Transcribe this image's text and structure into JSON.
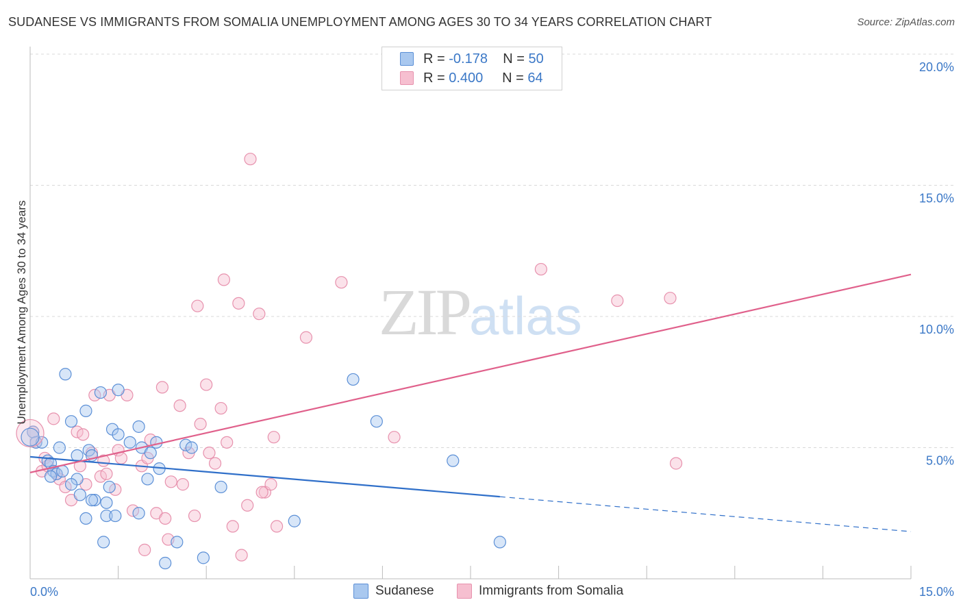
{
  "title": "SUDANESE VS IMMIGRANTS FROM SOMALIA UNEMPLOYMENT AMONG AGES 30 TO 34 YEARS CORRELATION CHART",
  "source": "Source: ZipAtlas.com",
  "watermark": {
    "zip": "ZIP",
    "atlas": "atlas"
  },
  "legend": {
    "rows": [
      {
        "r_label": "R =",
        "r_value": "-0.178",
        "n_label": "N =",
        "n_value": "50"
      },
      {
        "r_label": "R =",
        "r_value": "0.400",
        "n_label": "N =",
        "n_value": "64"
      }
    ]
  },
  "bottom_legend": {
    "series1": "Sudanese",
    "series2": "Immigrants from Somalia"
  },
  "colors": {
    "sudanese_fill": "#a9c8ef",
    "sudanese_stroke": "#5b8fd6",
    "sudanese_line": "#2f6fc9",
    "somalia_fill": "#f6bfd0",
    "somalia_stroke": "#e791ad",
    "somalia_line": "#e0608b",
    "tick": "#3b78c7",
    "grid": "#d8d8d8"
  },
  "chart_data": {
    "type": "scatter",
    "title": "SUDANESE VS IMMIGRANTS FROM SOMALIA UNEMPLOYMENT AMONG AGES 30 TO 34 YEARS CORRELATION CHART",
    "xlabel": "",
    "ylabel": "Unemployment Among Ages 30 to 34 years",
    "xlim": [
      0,
      15
    ],
    "ylim": [
      0,
      20
    ],
    "x_tick_labels": [
      "0.0%",
      "15.0%"
    ],
    "y_ticks": [
      5,
      10,
      15,
      20
    ],
    "y_tick_labels": [
      "5.0%",
      "10.0%",
      "15.0%",
      "20.0%"
    ],
    "grid": true,
    "legend_position": "top-center",
    "series": [
      {
        "name": "Sudanese",
        "R": -0.178,
        "N": 50,
        "trend": {
          "x0": 0,
          "y0": 4.65,
          "x1": 8.0,
          "y1": 3.13,
          "dashed_to_x": 15,
          "dashed_to_y": 1.8
        },
        "points": [
          [
            0.05,
            5.6
          ],
          [
            0.1,
            5.2
          ],
          [
            0.2,
            5.2
          ],
          [
            0.3,
            4.5
          ],
          [
            0.35,
            4.4
          ],
          [
            0.4,
            4.1
          ],
          [
            0.45,
            4.0
          ],
          [
            0.5,
            5.0
          ],
          [
            0.6,
            7.8
          ],
          [
            0.7,
            6.0
          ],
          [
            0.8,
            4.7
          ],
          [
            0.8,
            3.8
          ],
          [
            0.85,
            3.2
          ],
          [
            0.95,
            2.3
          ],
          [
            0.95,
            6.4
          ],
          [
            1.0,
            4.9
          ],
          [
            1.05,
            4.7
          ],
          [
            1.1,
            3.0
          ],
          [
            1.2,
            7.1
          ],
          [
            1.25,
            1.4
          ],
          [
            1.3,
            2.9
          ],
          [
            1.3,
            2.4
          ],
          [
            1.35,
            3.5
          ],
          [
            1.4,
            5.7
          ],
          [
            1.45,
            2.4
          ],
          [
            1.5,
            5.5
          ],
          [
            1.5,
            7.2
          ],
          [
            1.7,
            5.2
          ],
          [
            1.85,
            2.5
          ],
          [
            1.85,
            5.8
          ],
          [
            1.9,
            5.0
          ],
          [
            2.0,
            3.8
          ],
          [
            2.05,
            4.8
          ],
          [
            2.15,
            5.2
          ],
          [
            2.2,
            4.2
          ],
          [
            2.3,
            0.6
          ],
          [
            2.5,
            1.4
          ],
          [
            2.65,
            5.1
          ],
          [
            2.75,
            5.0
          ],
          [
            2.95,
            0.8
          ],
          [
            3.25,
            3.5
          ],
          [
            4.5,
            2.2
          ],
          [
            5.5,
            7.6
          ],
          [
            5.9,
            6.0
          ],
          [
            7.2,
            4.5
          ],
          [
            8.0,
            1.4
          ],
          [
            0.55,
            4.1
          ],
          [
            0.35,
            3.9
          ],
          [
            0.7,
            3.6
          ],
          [
            1.05,
            3.0
          ]
        ]
      },
      {
        "name": "Immigrants from Somalia",
        "R": 0.4,
        "N": 64,
        "trend": {
          "x0": 0,
          "y0": 4.05,
          "x1": 15,
          "y1": 11.6
        },
        "points": [
          [
            0.05,
            5.6
          ],
          [
            0.1,
            5.2
          ],
          [
            0.2,
            4.1
          ],
          [
            0.25,
            4.6
          ],
          [
            0.3,
            4.3
          ],
          [
            0.4,
            6.1
          ],
          [
            0.45,
            4.0
          ],
          [
            0.5,
            3.8
          ],
          [
            0.6,
            3.5
          ],
          [
            0.7,
            3.0
          ],
          [
            0.8,
            5.6
          ],
          [
            0.85,
            4.3
          ],
          [
            0.9,
            5.5
          ],
          [
            0.95,
            3.6
          ],
          [
            1.05,
            4.8
          ],
          [
            1.1,
            7.0
          ],
          [
            1.2,
            3.9
          ],
          [
            1.25,
            4.5
          ],
          [
            1.3,
            4.0
          ],
          [
            1.35,
            7.0
          ],
          [
            1.45,
            3.4
          ],
          [
            1.5,
            4.9
          ],
          [
            1.55,
            4.6
          ],
          [
            1.65,
            7.0
          ],
          [
            1.75,
            2.6
          ],
          [
            1.9,
            4.3
          ],
          [
            1.95,
            1.1
          ],
          [
            2.0,
            4.6
          ],
          [
            2.05,
            5.3
          ],
          [
            2.15,
            2.5
          ],
          [
            2.25,
            7.3
          ],
          [
            2.3,
            2.3
          ],
          [
            2.35,
            1.5
          ],
          [
            2.4,
            3.7
          ],
          [
            2.55,
            6.6
          ],
          [
            2.6,
            3.6
          ],
          [
            2.7,
            4.8
          ],
          [
            2.8,
            2.4
          ],
          [
            2.85,
            10.4
          ],
          [
            2.9,
            5.9
          ],
          [
            3.0,
            7.4
          ],
          [
            3.05,
            4.8
          ],
          [
            3.15,
            4.4
          ],
          [
            3.25,
            6.5
          ],
          [
            3.3,
            11.4
          ],
          [
            3.35,
            5.2
          ],
          [
            3.45,
            2.0
          ],
          [
            3.55,
            10.5
          ],
          [
            3.6,
            0.9
          ],
          [
            3.7,
            2.8
          ],
          [
            3.75,
            16.0
          ],
          [
            3.9,
            10.1
          ],
          [
            4.0,
            3.3
          ],
          [
            4.1,
            3.6
          ],
          [
            4.15,
            5.4
          ],
          [
            4.2,
            2.0
          ],
          [
            4.7,
            9.2
          ],
          [
            5.3,
            11.3
          ],
          [
            6.2,
            5.4
          ],
          [
            8.7,
            11.8
          ],
          [
            10.0,
            10.6
          ],
          [
            10.9,
            10.7
          ],
          [
            11.0,
            4.4
          ],
          [
            3.95,
            3.3
          ]
        ]
      }
    ]
  }
}
